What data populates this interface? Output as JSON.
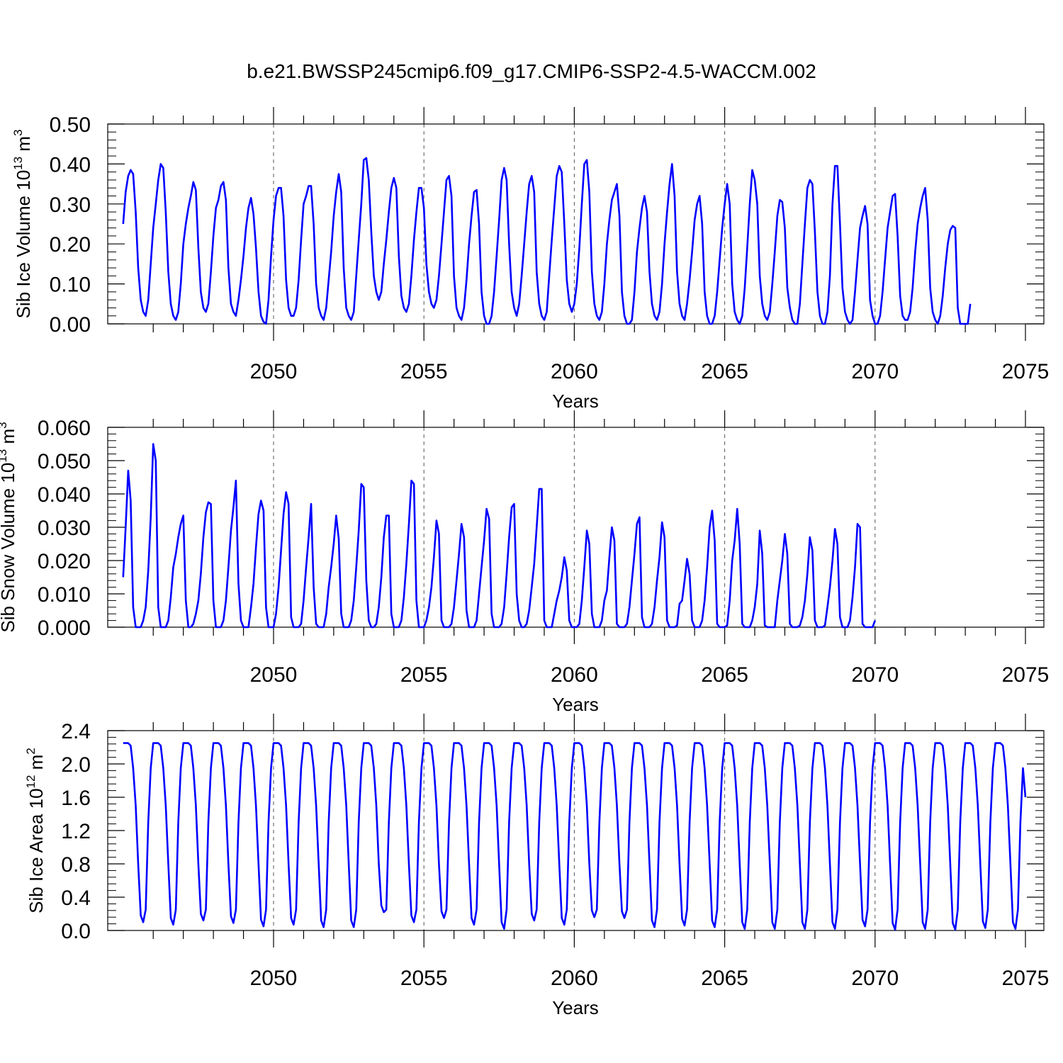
{
  "figure": {
    "title": "b.e21.BWSSP245cmip6.f09_g17.CMIP6-SSP2-4.5-WACCM.002"
  },
  "chart_data": [
    {
      "type": "line",
      "title": "b.e21.BWSSP245cmip6.f09_g17.CMIP6-SSP2-4.5-WACCM.002",
      "ylabel": "Sib Ice Volume 10",
      "ylabel_exp": "13",
      "ylabel_unit": " m",
      "ylabel_unit_exp": "3",
      "xlabel": "Years",
      "xlim": [
        2045.0,
        2075.0
      ],
      "ylim": [
        0,
        0.5
      ],
      "yticks": [
        0,
        0.1,
        0.2,
        0.3,
        0.4,
        0.5
      ],
      "ytick_labels": [
        "0.00",
        "0.10",
        "0.20",
        "0.30",
        "0.40",
        "0.50"
      ],
      "xticks": [
        2050,
        2055,
        2060,
        2065,
        2070,
        2075
      ],
      "xtick_labels": [
        "2050",
        "2055",
        "2060",
        "2065",
        "2070",
        "2075"
      ],
      "grid": "vertical dashed lines at major x ticks",
      "series": [
        {
          "color": "#0000ff",
          "x_start": 2045.0,
          "x_step": 0.0833333,
          "values": [
            0.25,
            0.33,
            0.37,
            0.385,
            0.375,
            0.28,
            0.14,
            0.06,
            0.03,
            0.02,
            0.06,
            0.15,
            0.24,
            0.3,
            0.36,
            0.4,
            0.39,
            0.28,
            0.13,
            0.05,
            0.02,
            0.01,
            0.03,
            0.1,
            0.2,
            0.25,
            0.29,
            0.32,
            0.355,
            0.335,
            0.19,
            0.08,
            0.04,
            0.03,
            0.05,
            0.13,
            0.22,
            0.29,
            0.31,
            0.345,
            0.355,
            0.31,
            0.14,
            0.05,
            0.03,
            0.02,
            0.06,
            0.11,
            0.17,
            0.24,
            0.29,
            0.315,
            0.275,
            0.19,
            0.08,
            0.02,
            0.005,
            0.0,
            0.06,
            0.17,
            0.26,
            0.32,
            0.34,
            0.34,
            0.27,
            0.11,
            0.04,
            0.02,
            0.02,
            0.04,
            0.11,
            0.21,
            0.3,
            0.32,
            0.345,
            0.345,
            0.25,
            0.1,
            0.04,
            0.02,
            0.01,
            0.04,
            0.11,
            0.18,
            0.27,
            0.33,
            0.375,
            0.33,
            0.14,
            0.04,
            0.02,
            0.01,
            0.03,
            0.12,
            0.21,
            0.3,
            0.41,
            0.415,
            0.36,
            0.23,
            0.12,
            0.08,
            0.06,
            0.08,
            0.15,
            0.21,
            0.28,
            0.34,
            0.365,
            0.34,
            0.17,
            0.07,
            0.04,
            0.03,
            0.05,
            0.12,
            0.21,
            0.28,
            0.34,
            0.34,
            0.29,
            0.15,
            0.08,
            0.05,
            0.04,
            0.06,
            0.12,
            0.2,
            0.28,
            0.36,
            0.37,
            0.32,
            0.12,
            0.04,
            0.02,
            0.01,
            0.04,
            0.11,
            0.2,
            0.27,
            0.33,
            0.335,
            0.25,
            0.08,
            0.02,
            0.0,
            0.0,
            0.02,
            0.08,
            0.17,
            0.26,
            0.36,
            0.39,
            0.36,
            0.2,
            0.08,
            0.04,
            0.02,
            0.05,
            0.12,
            0.2,
            0.28,
            0.35,
            0.37,
            0.33,
            0.13,
            0.05,
            0.02,
            0.01,
            0.03,
            0.12,
            0.21,
            0.29,
            0.37,
            0.395,
            0.38,
            0.25,
            0.11,
            0.05,
            0.03,
            0.05,
            0.1,
            0.19,
            0.3,
            0.4,
            0.41,
            0.33,
            0.13,
            0.05,
            0.02,
            0.01,
            0.03,
            0.1,
            0.2,
            0.26,
            0.31,
            0.33,
            0.35,
            0.27,
            0.08,
            0.02,
            0.0,
            0.0,
            0.01,
            0.08,
            0.18,
            0.24,
            0.29,
            0.32,
            0.28,
            0.13,
            0.05,
            0.02,
            0.01,
            0.03,
            0.1,
            0.2,
            0.28,
            0.35,
            0.4,
            0.32,
            0.13,
            0.05,
            0.02,
            0.01,
            0.05,
            0.11,
            0.18,
            0.26,
            0.3,
            0.32,
            0.25,
            0.08,
            0.02,
            0.0,
            0.0,
            0.02,
            0.08,
            0.16,
            0.24,
            0.3,
            0.35,
            0.3,
            0.1,
            0.03,
            0.01,
            0.0,
            0.02,
            0.09,
            0.19,
            0.3,
            0.385,
            0.36,
            0.3,
            0.12,
            0.05,
            0.02,
            0.01,
            0.03,
            0.1,
            0.18,
            0.27,
            0.31,
            0.305,
            0.24,
            0.09,
            0.04,
            0.01,
            0.0,
            0.0,
            0.05,
            0.15,
            0.25,
            0.34,
            0.36,
            0.35,
            0.23,
            0.08,
            0.02,
            0.0,
            0.0,
            0.03,
            0.12,
            0.3,
            0.395,
            0.395,
            0.25,
            0.09,
            0.03,
            0.01,
            0.0,
            0.01,
            0.08,
            0.16,
            0.24,
            0.27,
            0.295,
            0.25,
            0.06,
            0.02,
            0.0,
            0.0,
            0.02,
            0.08,
            0.16,
            0.24,
            0.28,
            0.32,
            0.325,
            0.22,
            0.07,
            0.02,
            0.01,
            0.01,
            0.03,
            0.09,
            0.18,
            0.25,
            0.29,
            0.32,
            0.34,
            0.26,
            0.09,
            0.03,
            0.01,
            0.0,
            0.02,
            0.07,
            0.14,
            0.2,
            0.235,
            0.245,
            0.24,
            0.04,
            0.0,
            0.0,
            0.0,
            0.0,
            0.05
          ]
        }
      ]
    },
    {
      "type": "line",
      "ylabel": "Sib Snow Volume 10",
      "ylabel_exp": "13",
      "ylabel_unit": " m",
      "ylabel_unit_exp": "3",
      "xlabel": "Years",
      "xlim": [
        2045.0,
        2075.0
      ],
      "ylim": [
        0,
        0.06
      ],
      "yticks": [
        0,
        0.01,
        0.02,
        0.03,
        0.04,
        0.05,
        0.06
      ],
      "ytick_labels": [
        "0.000",
        "0.010",
        "0.020",
        "0.030",
        "0.040",
        "0.050",
        "0.060"
      ],
      "xticks": [
        2050,
        2055,
        2060,
        2065,
        2070,
        2075
      ],
      "xtick_labels": [
        "2050",
        "2055",
        "2060",
        "2065",
        "2070",
        "2075"
      ],
      "grid": "vertical dashed lines at major x ticks",
      "series": [
        {
          "color": "#0000ff",
          "x_start": 2045.0,
          "x_step": 0.0833333,
          "values": [
            0.015,
            0.03,
            0.047,
            0.038,
            0.006,
            0.0,
            0.0,
            0.0,
            0.002,
            0.006,
            0.017,
            0.033,
            0.055,
            0.05,
            0.006,
            0.0,
            0.0,
            0.0,
            0.002,
            0.009,
            0.018,
            0.022,
            0.027,
            0.031,
            0.0335,
            0.008,
            0.0,
            0.0,
            0.001,
            0.004,
            0.008,
            0.016,
            0.027,
            0.0345,
            0.0375,
            0.037,
            0.008,
            0.0,
            0.0,
            0.0,
            0.002,
            0.008,
            0.018,
            0.029,
            0.036,
            0.044,
            0.013,
            0.002,
            0.0,
            0.0,
            0.0,
            0.006,
            0.013,
            0.024,
            0.034,
            0.038,
            0.035,
            0.006,
            0.0,
            0.0,
            0.0,
            0.004,
            0.012,
            0.023,
            0.034,
            0.0405,
            0.037,
            0.003,
            0.0,
            0.0,
            0.0,
            0.001,
            0.008,
            0.018,
            0.027,
            0.037,
            0.012,
            0.001,
            0.0,
            0.0,
            0.0,
            0.004,
            0.012,
            0.018,
            0.025,
            0.0335,
            0.0265,
            0.004,
            0.0,
            0.0,
            0.0,
            0.002,
            0.008,
            0.018,
            0.029,
            0.043,
            0.042,
            0.014,
            0.002,
            0.0,
            0.0,
            0.001,
            0.006,
            0.015,
            0.027,
            0.0335,
            0.0335,
            0.004,
            0.0,
            0.0,
            0.0,
            0.002,
            0.009,
            0.019,
            0.031,
            0.044,
            0.043,
            0.008,
            0.0,
            0.0,
            0.0,
            0.002,
            0.006,
            0.012,
            0.021,
            0.032,
            0.028,
            0.002,
            0.0,
            0.0,
            0.0,
            0.001,
            0.006,
            0.014,
            0.022,
            0.031,
            0.027,
            0.005,
            0.0,
            0.0,
            0.0,
            0.002,
            0.01,
            0.018,
            0.026,
            0.0355,
            0.0325,
            0.004,
            0.0,
            0.0,
            0.0,
            0.001,
            0.006,
            0.016,
            0.027,
            0.036,
            0.037,
            0.01,
            0.002,
            0.0,
            0.0,
            0.001,
            0.005,
            0.012,
            0.019,
            0.03,
            0.0415,
            0.0415,
            0.002,
            0.0,
            0.0,
            0.0,
            0.004,
            0.008,
            0.011,
            0.015,
            0.021,
            0.017,
            0.002,
            0.0,
            0.0,
            0.0,
            0.001,
            0.008,
            0.018,
            0.029,
            0.025,
            0.004,
            0.0,
            0.0,
            0.0,
            0.002,
            0.008,
            0.011,
            0.021,
            0.03,
            0.026,
            0.001,
            0.0,
            0.0,
            0.0,
            0.001,
            0.006,
            0.014,
            0.022,
            0.031,
            0.033,
            0.003,
            0.0,
            0.0,
            0.0,
            0.001,
            0.006,
            0.014,
            0.021,
            0.0315,
            0.027,
            0.002,
            0.0,
            0.0,
            0.0,
            0.0005,
            0.007,
            0.008,
            0.014,
            0.0205,
            0.016,
            0.002,
            0.0,
            0.0,
            0.0,
            0.002,
            0.008,
            0.018,
            0.03,
            0.035,
            0.026,
            0.001,
            0.0,
            0.0,
            0.0,
            0.0005,
            0.008,
            0.02,
            0.026,
            0.0355,
            0.025,
            0.001,
            0.0,
            0.0,
            0.0,
            0.002,
            0.006,
            0.013,
            0.029,
            0.022,
            0.0005,
            0.0,
            0.0,
            0.0,
            0.0,
            0.008,
            0.014,
            0.02,
            0.028,
            0.022,
            0.001,
            0.0,
            0.0,
            0.0,
            0.0005,
            0.003,
            0.008,
            0.016,
            0.027,
            0.023,
            0.002,
            0.0,
            0.0,
            0.0,
            0.0005,
            0.006,
            0.012,
            0.02,
            0.0295,
            0.025,
            0.003,
            0.0,
            0.0,
            0.0,
            0.002,
            0.009,
            0.018,
            0.031,
            0.03,
            0.001,
            0.0,
            0.0,
            0.0,
            0.0,
            0.002
          ]
        }
      ]
    },
    {
      "type": "line",
      "ylabel": "Sib Ice Area 10",
      "ylabel_exp": "12",
      "ylabel_unit": " m",
      "ylabel_unit_exp": "2",
      "xlabel": "Years",
      "xlim": [
        2045.0,
        2075.0
      ],
      "ylim": [
        0,
        2.4
      ],
      "yticks": [
        0,
        0.4,
        0.8,
        1.2,
        1.6,
        2.0,
        2.4
      ],
      "ytick_labels": [
        "0.0",
        "0.4",
        "0.8",
        "1.2",
        "1.6",
        "2.0",
        "2.4"
      ],
      "xticks": [
        2050,
        2055,
        2060,
        2065,
        2070,
        2075
      ],
      "xtick_labels": [
        "2050",
        "2055",
        "2060",
        "2065",
        "2070",
        "2075"
      ],
      "grid": "vertical dashed lines at major x ticks",
      "series": [
        {
          "color": "#0000ff",
          "x_start": 2045.0,
          "x_step": 0.0833333,
          "profile": [
            2.25,
            2.25,
            2.25,
            2.22,
            1.95,
            1.5,
            0.8,
            0.2,
            0.1,
            0.25,
            1.3,
            1.95
          ],
          "lows": [
            0.1,
            0.07,
            0.12,
            0.09,
            0.05,
            0.07,
            0.04,
            0.04,
            0.22,
            0.1,
            0.15,
            0.07,
            0.02,
            0.12,
            0.07,
            0.16,
            0.15,
            0.04,
            0.06,
            0.04,
            0.02,
            0.02,
            0.02,
            0.02,
            0.05,
            0.01,
            0.02,
            0.01,
            0.03,
            0.02
          ]
        }
      ]
    }
  ]
}
